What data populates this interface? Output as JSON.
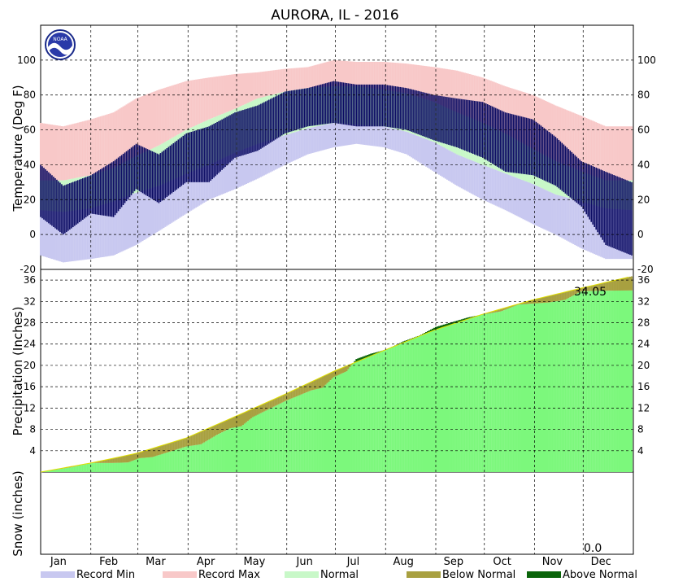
{
  "title": "AURORA, IL - 2016",
  "logo_text": "NOAA",
  "colors": {
    "record_min": "#c8c8f0",
    "record_max": "#f8c8c8",
    "normal": "#c8f8c8",
    "observed": "#0c0c64",
    "below_normal": "#a8a040",
    "above_normal": "#0a640a",
    "precip_fill": "#7cf87c"
  },
  "chart_data": [
    {
      "type": "area",
      "name": "temperature",
      "ylabel": "Temperature (Deg F)",
      "ylim": [
        -20,
        120
      ],
      "yticks": [
        -20,
        0,
        20,
        40,
        60,
        80,
        100
      ],
      "grid": true,
      "x_months": [
        "Jan",
        "Feb",
        "Mar",
        "Apr",
        "May",
        "Jun",
        "Jul",
        "Aug",
        "Sep",
        "Oct",
        "Nov",
        "Dec"
      ],
      "x_days": [
        1,
        15,
        32,
        46,
        60,
        74,
        91,
        105,
        121,
        135,
        152,
        166,
        182,
        196,
        213,
        227,
        244,
        258,
        274,
        288,
        305,
        319,
        335,
        350,
        366
      ],
      "series": [
        {
          "name": "Record Max",
          "values": [
            64,
            62,
            66,
            70,
            78,
            83,
            88,
            90,
            92,
            93,
            95,
            96,
            100,
            99,
            99,
            98,
            96,
            94,
            90,
            85,
            80,
            74,
            68,
            62,
            62
          ]
        },
        {
          "name": "Record Min",
          "values": [
            -12,
            -16,
            -14,
            -12,
            -6,
            2,
            12,
            20,
            26,
            32,
            40,
            46,
            50,
            52,
            50,
            46,
            36,
            28,
            20,
            14,
            6,
            0,
            -8,
            -14,
            -14
          ]
        },
        {
          "name": "Normal High",
          "values": [
            31,
            31,
            34,
            38,
            45,
            51,
            60,
            66,
            72,
            78,
            82,
            84,
            85,
            85,
            83,
            81,
            76,
            70,
            64,
            58,
            49,
            42,
            36,
            31,
            31
          ]
        },
        {
          "name": "Normal Low",
          "values": [
            14,
            13,
            15,
            19,
            24,
            28,
            35,
            40,
            47,
            52,
            57,
            61,
            64,
            63,
            62,
            59,
            53,
            46,
            40,
            35,
            29,
            23,
            19,
            15,
            14
          ]
        },
        {
          "name": "Observed High",
          "values": [
            40,
            28,
            34,
            42,
            52,
            46,
            58,
            62,
            70,
            74,
            82,
            84,
            88,
            86,
            86,
            84,
            80,
            78,
            76,
            70,
            66,
            56,
            42,
            36,
            30
          ]
        },
        {
          "name": "Observed Low",
          "values": [
            10,
            0,
            12,
            10,
            26,
            18,
            30,
            30,
            44,
            48,
            58,
            62,
            64,
            62,
            62,
            60,
            54,
            50,
            44,
            36,
            34,
            28,
            16,
            -6,
            -12
          ]
        }
      ]
    },
    {
      "type": "area",
      "name": "precipitation",
      "ylabel": "Precipitation (Inches)",
      "ylim": [
        0,
        38
      ],
      "yticks": [
        4,
        8,
        12,
        16,
        20,
        24,
        28,
        32,
        36
      ],
      "grid": true,
      "annotation": "34.05",
      "series": [
        {
          "name": "Normal",
          "x_days": [
            1,
            32,
            60,
            91,
            121,
            152,
            182,
            213,
            244,
            274,
            305,
            335,
            366
          ],
          "values": [
            0,
            1.7,
            3.5,
            6.4,
            10.4,
            14.6,
            18.9,
            22.8,
            26.6,
            29.6,
            32.3,
            34.5,
            36.7
          ]
        },
        {
          "name": "Observed",
          "x_days": [
            1,
            20,
            32,
            45,
            55,
            62,
            70,
            91,
            100,
            110,
            118,
            125,
            132,
            140,
            152,
            160,
            168,
            175,
            182,
            190,
            196,
            205,
            215,
            225,
            235,
            245,
            255,
            265,
            275,
            285,
            296,
            305,
            315,
            325,
            335,
            345,
            366
          ],
          "values": [
            0,
            0.9,
            1.7,
            1.7,
            1.8,
            2.6,
            2.8,
            4.8,
            5.2,
            7.0,
            8.2,
            8.6,
            10.3,
            11.5,
            13.3,
            14.3,
            15.3,
            15.8,
            17.8,
            18.9,
            21.2,
            22.2,
            23.0,
            24.5,
            25.6,
            27.2,
            28.1,
            29.0,
            29.6,
            30.1,
            31.4,
            31.6,
            31.8,
            32.3,
            33.9,
            34.0,
            34.05
          ]
        }
      ]
    },
    {
      "type": "area",
      "name": "snow",
      "ylabel": "Snow (inches)",
      "annotation": "0.0",
      "grid": true
    }
  ],
  "legend": [
    {
      "label": "Record Min",
      "color": "#c8c8f0"
    },
    {
      "label": "Record Max",
      "color": "#f8c8c8"
    },
    {
      "label": "Normal",
      "color": "#c8f8c8"
    },
    {
      "label": "Below Normal",
      "color": "#a8a040"
    },
    {
      "label": "Above Normal",
      "color": "#0a640a"
    }
  ]
}
